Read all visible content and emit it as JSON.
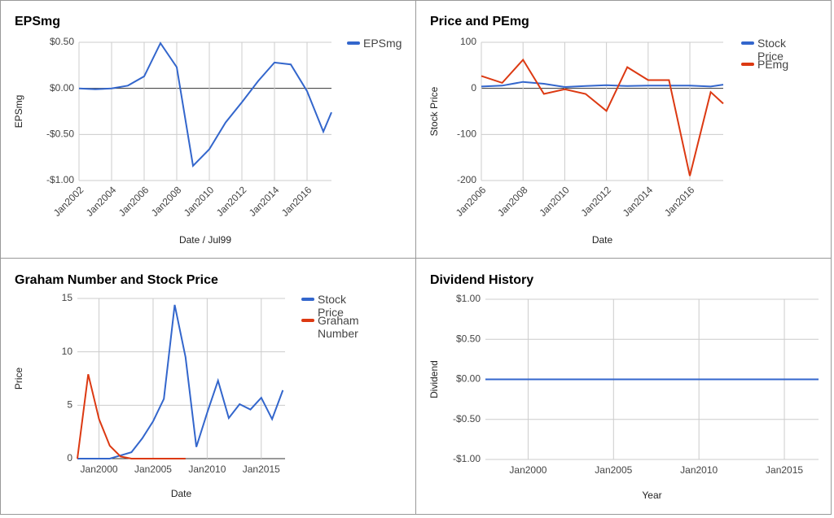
{
  "chart_data": [
    {
      "type": "line",
      "title": "EPSmg",
      "x_label": "Date / Jul99",
      "y_label": "EPSmg",
      "x": [
        2002,
        2003,
        2004,
        2005,
        2006,
        2007,
        2008,
        2009,
        2010,
        2011,
        2012,
        2013,
        2014,
        2015,
        2016,
        2017,
        2017.5
      ],
      "series": [
        {
          "name": "EPSmg",
          "color": "#3366cc",
          "values": [
            0,
            -0.01,
            0,
            0.03,
            0.13,
            0.49,
            0.23,
            -0.84,
            -0.66,
            -0.37,
            -0.15,
            0.08,
            0.28,
            0.26,
            -0.03,
            -0.47,
            -0.26
          ]
        }
      ],
      "xlim": [
        2002,
        2017.5
      ],
      "xticks": [
        {
          "value": 2002,
          "label": "Jan2002"
        },
        {
          "value": 2004,
          "label": "Jan2004"
        },
        {
          "value": 2006,
          "label": "Jan2006"
        },
        {
          "value": 2008,
          "label": "Jan2008"
        },
        {
          "value": 2010,
          "label": "Jan2010"
        },
        {
          "value": 2012,
          "label": "Jan2012"
        },
        {
          "value": 2014,
          "label": "Jan2014"
        },
        {
          "value": 2016,
          "label": "Jan2016"
        }
      ],
      "ylim": [
        -1,
        0.5
      ],
      "yticks": [
        {
          "value": 0.5,
          "label": "$0.50"
        },
        {
          "value": 0,
          "label": "$0.00"
        },
        {
          "value": -0.5,
          "label": "-$0.50"
        },
        {
          "value": -1,
          "label": "-$1.00"
        }
      ],
      "grid": true,
      "legend": "right"
    },
    {
      "type": "line",
      "title": "Price and PEmg",
      "x_label": "Date",
      "y_label": "Stock Price",
      "x": [
        2006,
        2007,
        2008,
        2009,
        2010,
        2011,
        2012,
        2013,
        2014,
        2015,
        2016,
        2017,
        2017.6
      ],
      "series": [
        {
          "name": "Stock Price",
          "color": "#3366cc",
          "values": [
            4,
            6,
            14,
            10,
            3,
            5,
            7,
            5,
            6,
            6,
            6,
            4,
            8
          ]
        },
        {
          "name": "PEmg",
          "color": "#dc3912",
          "values": [
            27,
            12,
            62,
            -12,
            -2,
            -12,
            -49,
            46,
            18,
            18,
            -190,
            -8,
            -33
          ]
        }
      ],
      "xlim": [
        2006,
        2017.6
      ],
      "xticks": [
        {
          "value": 2006,
          "label": "Jan2006"
        },
        {
          "value": 2008,
          "label": "Jan2008"
        },
        {
          "value": 2010,
          "label": "Jan2010"
        },
        {
          "value": 2012,
          "label": "Jan2012"
        },
        {
          "value": 2014,
          "label": "Jan2014"
        },
        {
          "value": 2016,
          "label": "Jan2016"
        }
      ],
      "ylim": [
        -200,
        100
      ],
      "yticks": [
        100,
        0,
        -100,
        -200
      ],
      "grid": true,
      "legend": "right"
    },
    {
      "type": "line",
      "title": "Graham Number and Stock Price",
      "x_label": "Date",
      "y_label": "Price",
      "x": [
        1998,
        1999,
        2000,
        2001,
        2002,
        2003,
        2004,
        2005,
        2006,
        2007,
        2008,
        2009,
        2010,
        2011,
        2012,
        2013,
        2014,
        2015,
        2016,
        2017
      ],
      "series": [
        {
          "name": "Stock Price",
          "color": "#3366cc",
          "values": [
            0,
            0,
            0,
            0,
            0.3,
            0.6,
            1.9,
            3.5,
            5.6,
            14.4,
            9.5,
            1.1,
            4.3,
            7.3,
            3.8,
            5.1,
            4.6,
            5.7,
            3.7,
            6.4
          ]
        },
        {
          "name": "Graham Number",
          "color": "#dc3912",
          "values": [
            0,
            7.9,
            3.7,
            1.2,
            0.2,
            0,
            0,
            0,
            0,
            0,
            0,
            null,
            null,
            null,
            null,
            null,
            null,
            null,
            null,
            null
          ]
        }
      ],
      "xlim": [
        1998,
        2017.2
      ],
      "xticks": [
        {
          "value": 2000,
          "label": "Jan2000"
        },
        {
          "value": 2005,
          "label": "Jan2005"
        },
        {
          "value": 2010,
          "label": "Jan2010"
        },
        {
          "value": 2015,
          "label": "Jan2015"
        }
      ],
      "ylim": [
        0,
        15
      ],
      "yticks": [
        0,
        5,
        10,
        15
      ],
      "grid": true,
      "legend": "right"
    },
    {
      "type": "line",
      "title": "Dividend History",
      "x_label": "Year",
      "y_label": "Dividend",
      "x": [
        1997.5,
        2017
      ],
      "series": [
        {
          "color": "#3366cc",
          "values": [
            0,
            0
          ]
        }
      ],
      "xlim": [
        1997.5,
        2017
      ],
      "xticks": [
        {
          "value": 2000,
          "label": "Jan2000"
        },
        {
          "value": 2005,
          "label": "Jan2005"
        },
        {
          "value": 2010,
          "label": "Jan2010"
        },
        {
          "value": 2015,
          "label": "Jan2015"
        }
      ],
      "ylim": [
        -1,
        1
      ],
      "yticks": [
        {
          "value": 1,
          "label": "$1.00"
        },
        {
          "value": 0.5,
          "label": "$0.50"
        },
        {
          "value": 0,
          "label": "$0.00"
        },
        {
          "value": -0.5,
          "label": "-$0.50"
        },
        {
          "value": -1,
          "label": "-$1.00"
        }
      ],
      "grid": true
    }
  ]
}
